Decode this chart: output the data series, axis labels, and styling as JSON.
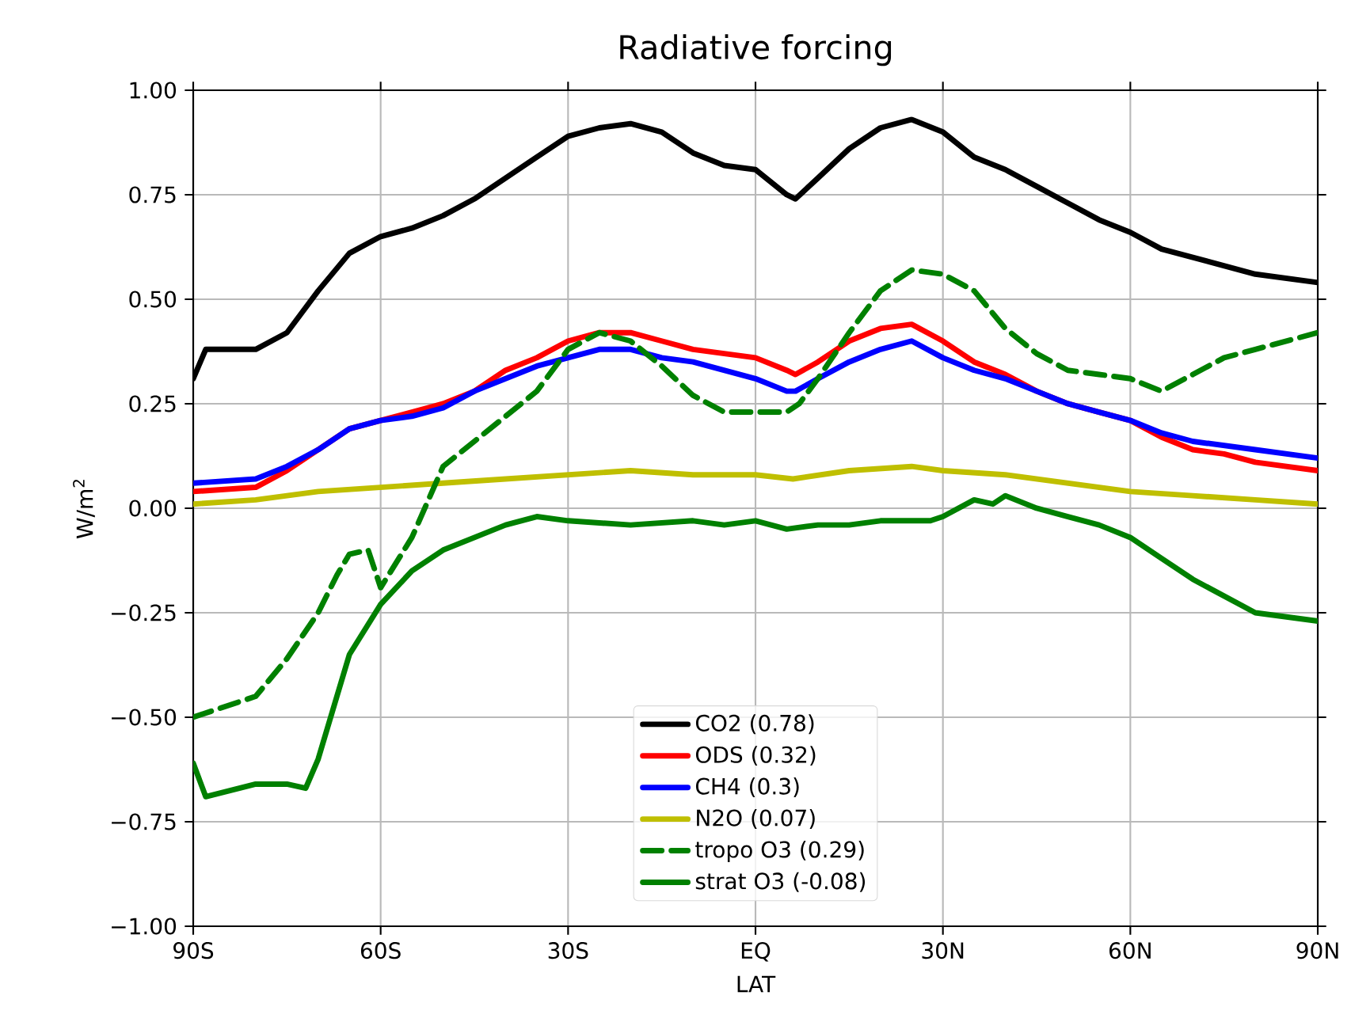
{
  "chart_data": {
    "type": "line",
    "title": "Radiative forcing",
    "xlabel": "LAT",
    "ylabel": "W/m$^{2}$",
    "xlim": [
      -90,
      90
    ],
    "xticks": [
      {
        "value": -90,
        "label": "90S"
      },
      {
        "value": -60,
        "label": "60S"
      },
      {
        "value": -30,
        "label": "30S"
      },
      {
        "value": 0,
        "label": "EQ"
      },
      {
        "value": 30,
        "label": "30N"
      },
      {
        "value": 60,
        "label": "60N"
      },
      {
        "value": 90,
        "label": "90N"
      }
    ],
    "ylim": [
      -1,
      1
    ],
    "yticks": [
      {
        "value": -1,
        "label": "−1.00"
      },
      {
        "value": -0.75,
        "label": "−0.75"
      },
      {
        "value": -0.5,
        "label": "−0.50"
      },
      {
        "value": -0.25,
        "label": "−0.25"
      },
      {
        "value": 0,
        "label": "0.00"
      },
      {
        "value": 0.25,
        "label": "0.25"
      },
      {
        "value": 0.5,
        "label": "0.50"
      },
      {
        "value": 0.75,
        "label": "0.75"
      },
      {
        "value": 1,
        "label": "1.00"
      }
    ],
    "grid": true,
    "legend": "bottom",
    "marker": "none",
    "series": [
      {
        "name": "CO2 (0.78)",
        "color": "#000000",
        "line_style": "solid",
        "x": [
          -90,
          -88,
          -80,
          -75,
          -70,
          -65,
          -60,
          -55,
          -50,
          -45,
          -40,
          -35,
          -30,
          -25,
          -20,
          -15,
          -10,
          -5,
          0,
          5,
          6.4,
          10,
          15,
          20,
          25,
          30,
          35,
          40,
          45,
          50,
          55,
          60,
          65,
          70,
          75,
          80,
          90
        ],
        "values": [
          0.31,
          0.38,
          0.38,
          0.42,
          0.52,
          0.61,
          0.65,
          0.67,
          0.7,
          0.74,
          0.79,
          0.84,
          0.89,
          0.91,
          0.92,
          0.9,
          0.85,
          0.82,
          0.81,
          0.75,
          0.74,
          0.79,
          0.86,
          0.91,
          0.93,
          0.9,
          0.84,
          0.81,
          0.77,
          0.73,
          0.69,
          0.66,
          0.62,
          0.6,
          0.58,
          0.56,
          0.54
        ]
      },
      {
        "name": "ODS (0.32)",
        "color": "#ff0000",
        "line_style": "solid",
        "x": [
          -90,
          -80,
          -75,
          -70,
          -65,
          -60,
          -55,
          -50,
          -45,
          -40,
          -35,
          -30,
          -25,
          -20,
          -15,
          -10,
          -5,
          0,
          5,
          6.4,
          10,
          15,
          20,
          25,
          30,
          35,
          40,
          45,
          50,
          55,
          60,
          65,
          70,
          75,
          80,
          90
        ],
        "values": [
          0.04,
          0.05,
          0.09,
          0.14,
          0.19,
          0.21,
          0.23,
          0.25,
          0.28,
          0.33,
          0.36,
          0.4,
          0.42,
          0.42,
          0.4,
          0.38,
          0.37,
          0.36,
          0.33,
          0.32,
          0.35,
          0.4,
          0.43,
          0.44,
          0.4,
          0.35,
          0.32,
          0.28,
          0.25,
          0.23,
          0.21,
          0.17,
          0.14,
          0.13,
          0.11,
          0.09
        ]
      },
      {
        "name": "CH4 (0.3)",
        "color": "#0000ff",
        "line_style": "solid",
        "x": [
          -90,
          -80,
          -75,
          -70,
          -65,
          -60,
          -55,
          -50,
          -45,
          -40,
          -35,
          -30,
          -25,
          -20,
          -15,
          -10,
          -5,
          0,
          5,
          6.4,
          10,
          15,
          20,
          25,
          30,
          35,
          40,
          45,
          50,
          55,
          60,
          65,
          70,
          75,
          80,
          90
        ],
        "values": [
          0.06,
          0.07,
          0.1,
          0.14,
          0.19,
          0.21,
          0.22,
          0.24,
          0.28,
          0.31,
          0.34,
          0.36,
          0.38,
          0.38,
          0.36,
          0.35,
          0.33,
          0.31,
          0.28,
          0.28,
          0.31,
          0.35,
          0.38,
          0.4,
          0.36,
          0.33,
          0.31,
          0.28,
          0.25,
          0.23,
          0.21,
          0.18,
          0.16,
          0.15,
          0.14,
          0.12
        ]
      },
      {
        "name": "N2O (0.07)",
        "color": "#bfbf00",
        "line_style": "solid",
        "x": [
          -90,
          -80,
          -70,
          -60,
          -50,
          -40,
          -30,
          -20,
          -10,
          0,
          6,
          15,
          25,
          30,
          40,
          50,
          60,
          70,
          80,
          90
        ],
        "values": [
          0.01,
          0.02,
          0.04,
          0.05,
          0.06,
          0.07,
          0.08,
          0.09,
          0.08,
          0.08,
          0.07,
          0.09,
          0.1,
          0.09,
          0.08,
          0.06,
          0.04,
          0.03,
          0.02,
          0.01
        ]
      },
      {
        "name": "tropo O3 (0.29)",
        "color": "#008000",
        "line_style": "dashed",
        "x": [
          -90,
          -80,
          -75,
          -70,
          -67,
          -65,
          -62,
          -60,
          -55,
          -50,
          -45,
          -40,
          -35,
          -30,
          -25,
          -20,
          -15,
          -10,
          -5,
          0,
          5,
          7,
          10,
          15,
          20,
          25,
          30,
          35,
          40,
          45,
          50,
          55,
          60,
          65,
          70,
          75,
          80,
          90
        ],
        "values": [
          -0.5,
          -0.45,
          -0.36,
          -0.25,
          -0.16,
          -0.11,
          -0.1,
          -0.19,
          -0.07,
          0.1,
          0.16,
          0.22,
          0.28,
          0.38,
          0.42,
          0.4,
          0.34,
          0.27,
          0.23,
          0.23,
          0.23,
          0.25,
          0.31,
          0.42,
          0.52,
          0.57,
          0.56,
          0.52,
          0.43,
          0.37,
          0.33,
          0.32,
          0.31,
          0.28,
          0.32,
          0.36,
          0.38,
          0.42
        ]
      },
      {
        "name": "strat O3 (-0.08)",
        "color": "#008000",
        "line_style": "solid",
        "x": [
          -90,
          -88,
          -80,
          -78,
          -75,
          -72,
          -70,
          -67,
          -65,
          -60,
          -55,
          -50,
          -45,
          -40,
          -35,
          -30,
          -20,
          -10,
          -5,
          0,
          5,
          10,
          15,
          20,
          25,
          28,
          30,
          35,
          38,
          40,
          45,
          50,
          55,
          60,
          65,
          70,
          75,
          80,
          90
        ],
        "values": [
          -0.61,
          -0.69,
          -0.66,
          -0.66,
          -0.66,
          -0.67,
          -0.6,
          -0.45,
          -0.35,
          -0.23,
          -0.15,
          -0.1,
          -0.07,
          -0.04,
          -0.02,
          -0.03,
          -0.04,
          -0.03,
          -0.04,
          -0.03,
          -0.05,
          -0.04,
          -0.04,
          -0.03,
          -0.03,
          -0.03,
          -0.02,
          0.02,
          0.01,
          0.03,
          0.0,
          -0.02,
          -0.04,
          -0.07,
          -0.12,
          -0.17,
          -0.21,
          -0.25,
          -0.27
        ]
      }
    ]
  }
}
